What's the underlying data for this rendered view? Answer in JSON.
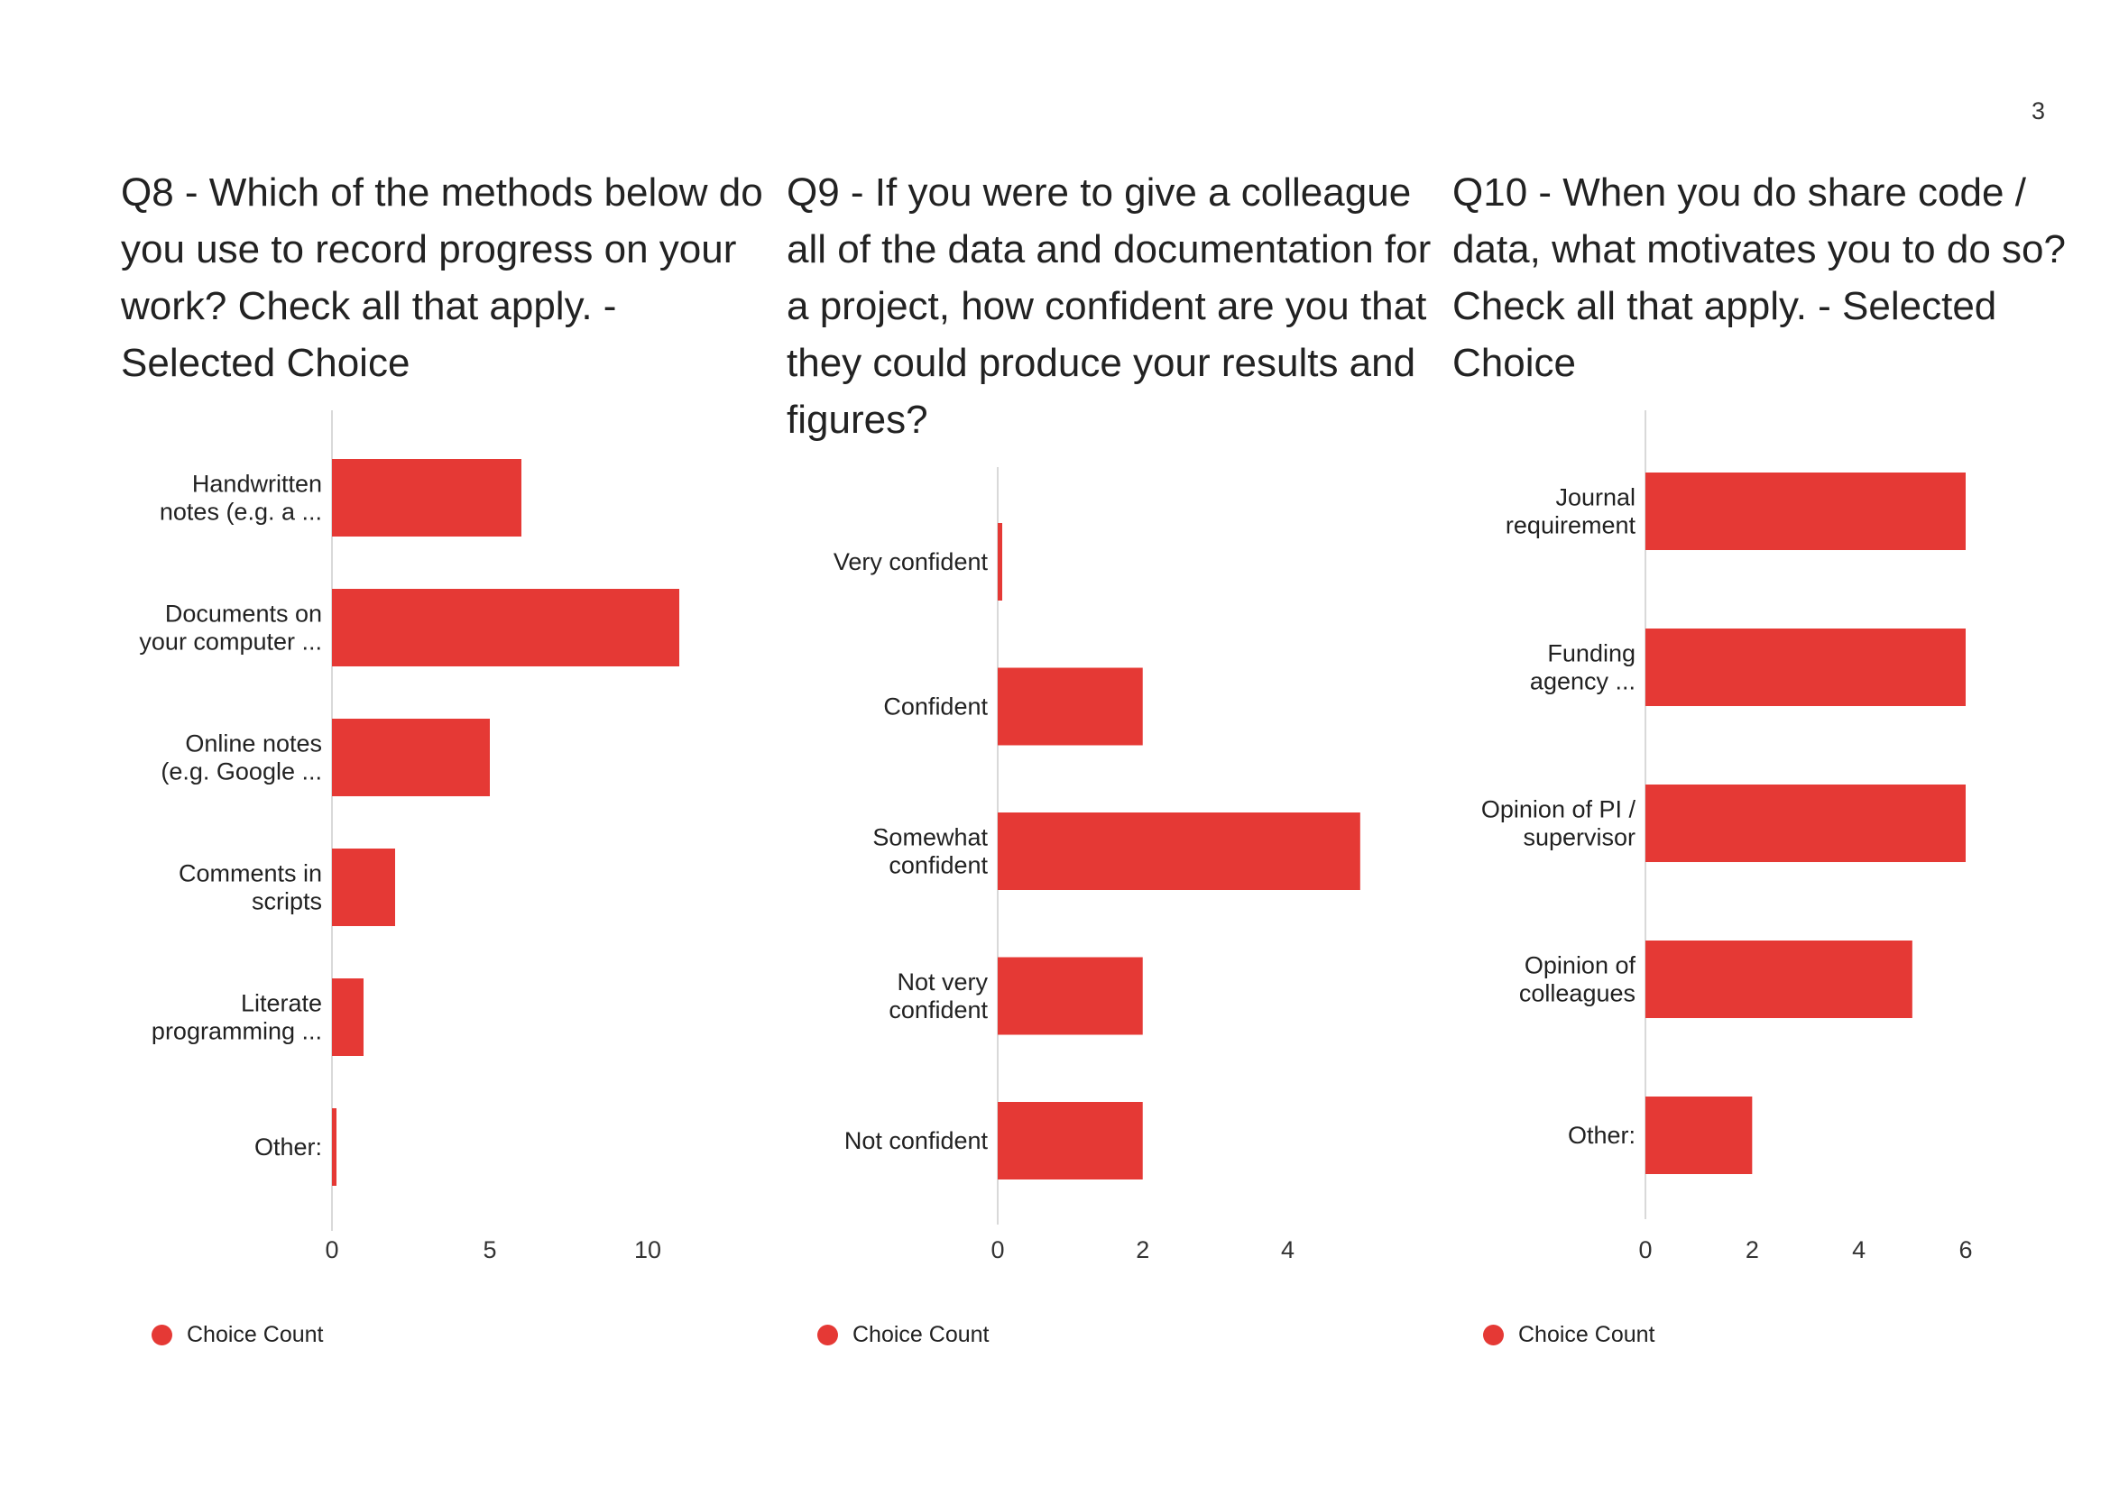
{
  "page_number": "3",
  "accent_color": "#e53935",
  "chart_data": [
    {
      "type": "bar",
      "orientation": "horizontal",
      "title": "Q8 - Which of the methods below do you use to record progress on your work? Check all that apply. - Selected Choice",
      "categories": [
        [
          "Handwritten",
          "notes (e.g. a ..."
        ],
        [
          "Documents on",
          "your computer ..."
        ],
        [
          "Online notes",
          "(e.g. Google ..."
        ],
        [
          "Comments in",
          "scripts"
        ],
        [
          "Literate",
          "programming ..."
        ],
        [
          "Other:"
        ]
      ],
      "series": [
        {
          "name": "Choice Count",
          "values": [
            6,
            11,
            5,
            2,
            1,
            0
          ]
        }
      ],
      "xlim": [
        0,
        12
      ],
      "xticks": [
        0,
        5,
        10
      ],
      "legend": "bottom-left",
      "grid": false
    },
    {
      "type": "bar",
      "orientation": "horizontal",
      "title": "Q9 - If you were to give a colleague all of the data and documentation for a project, how confident are you that they could produce your results and figures?",
      "categories": [
        [
          "Very confident"
        ],
        [
          "Confident"
        ],
        [
          "Somewhat",
          "confident"
        ],
        [
          "Not very",
          "confident"
        ],
        [
          "Not confident"
        ]
      ],
      "series": [
        {
          "name": "Choice Count",
          "values": [
            0,
            2,
            5,
            2,
            2
          ]
        }
      ],
      "xlim": [
        0,
        5.5
      ],
      "xticks": [
        0,
        2,
        4
      ],
      "legend": "bottom-left",
      "grid": false
    },
    {
      "type": "bar",
      "orientation": "horizontal",
      "title": "Q10 - When you do share code / data, what motivates you to do so? Check all that apply. - Selected Choice",
      "categories": [
        [
          "Journal",
          "requirement"
        ],
        [
          "Funding",
          "agency ..."
        ],
        [
          "Opinion of PI /",
          "supervisor"
        ],
        [
          "Opinion of",
          "colleagues"
        ],
        [
          "Other:"
        ]
      ],
      "series": [
        {
          "name": "Choice Count",
          "values": [
            6,
            6,
            6,
            5,
            2
          ]
        }
      ],
      "xlim": [
        0,
        6
      ],
      "xticks": [
        0,
        2,
        4,
        6
      ],
      "legend": "bottom-left",
      "grid": false
    }
  ]
}
